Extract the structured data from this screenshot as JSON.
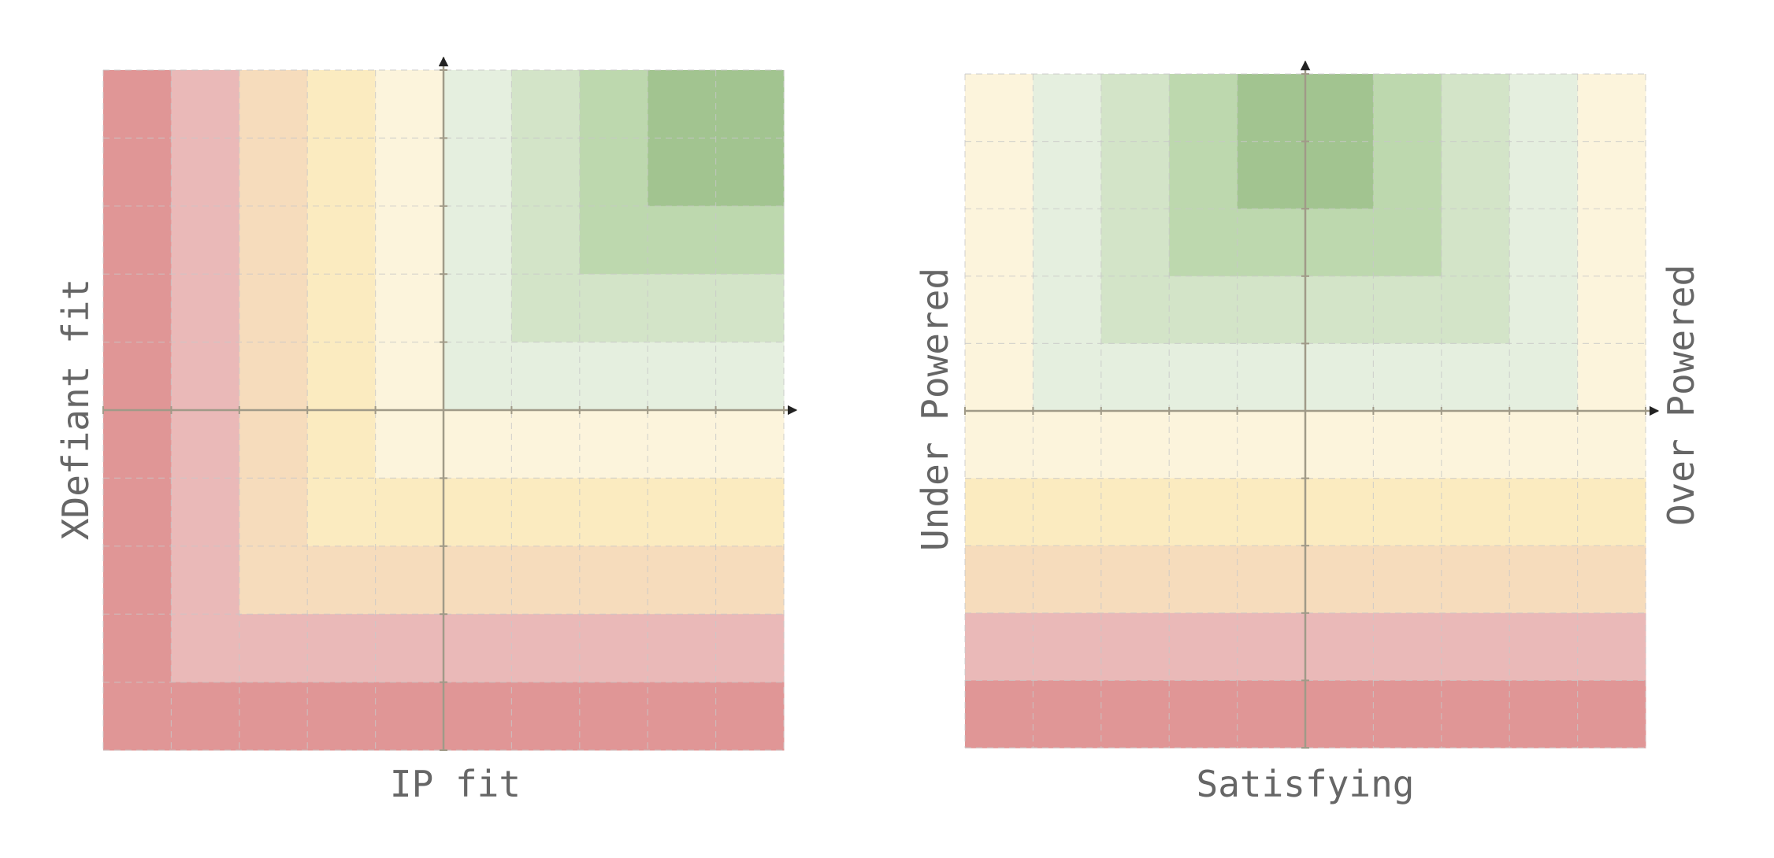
{
  "colors": {
    "level_5": "#a2c490",
    "level_4": "#bdd8ae",
    "level_3": "#d3e4c8",
    "level_2": "#e5efdf",
    "level_1": "#fcf4dc",
    "level_m1": "#fbebc0",
    "level_m2": "#f6dcbc",
    "level_m3": "#eab9b8",
    "level_m4": "#e09696",
    "axis": "#a09a88",
    "axis_dark": "#5a3a3a",
    "grid": "#c8c8c8",
    "label": "#666666"
  },
  "left_chart": {
    "xlabel": "IP fit",
    "ylabel": "XDefiant fit",
    "cells": [
      [
        -4,
        -3,
        -2,
        -1,
        1,
        2,
        3,
        4,
        5,
        5
      ],
      [
        -4,
        -3,
        -2,
        -1,
        1,
        2,
        3,
        4,
        5,
        5
      ],
      [
        -4,
        -3,
        -2,
        -1,
        1,
        2,
        3,
        4,
        4,
        4
      ],
      [
        -4,
        -3,
        -2,
        -1,
        1,
        2,
        3,
        3,
        3,
        3
      ],
      [
        -4,
        -3,
        -2,
        -1,
        1,
        2,
        2,
        2,
        2,
        2
      ],
      [
        -4,
        -3,
        -2,
        -1,
        1,
        1,
        1,
        1,
        1,
        1
      ],
      [
        -4,
        -3,
        -2,
        -1,
        -1,
        -1,
        -1,
        -1,
        -1,
        -1
      ],
      [
        -4,
        -3,
        -2,
        -2,
        -2,
        -2,
        -2,
        -2,
        -2,
        -2
      ],
      [
        -4,
        -3,
        -3,
        -3,
        -3,
        -3,
        -3,
        -3,
        -3,
        -3
      ],
      [
        -4,
        -4,
        -4,
        -4,
        -4,
        -4,
        -4,
        -4,
        -4,
        -4
      ]
    ]
  },
  "right_chart": {
    "xlabel": "Satisfying",
    "ylabel_left": "Under Powered",
    "ylabel_right": "Over Powered",
    "cells": [
      [
        1,
        2,
        3,
        4,
        5,
        5,
        4,
        3,
        2,
        1
      ],
      [
        1,
        2,
        3,
        4,
        5,
        5,
        4,
        3,
        2,
        1
      ],
      [
        1,
        2,
        3,
        4,
        4,
        4,
        4,
        3,
        2,
        1
      ],
      [
        1,
        2,
        3,
        3,
        3,
        3,
        3,
        3,
        2,
        1
      ],
      [
        1,
        2,
        2,
        2,
        2,
        2,
        2,
        2,
        2,
        1
      ],
      [
        1,
        1,
        1,
        1,
        1,
        1,
        1,
        1,
        1,
        1
      ],
      [
        -1,
        -1,
        -1,
        -1,
        -1,
        -1,
        -1,
        -1,
        -1,
        -1
      ],
      [
        -2,
        -2,
        -2,
        -2,
        -2,
        -2,
        -2,
        -2,
        -2,
        -2
      ],
      [
        -3,
        -3,
        -3,
        -3,
        -3,
        -3,
        -3,
        -3,
        -3,
        -3
      ],
      [
        -4,
        -4,
        -4,
        -4,
        -4,
        -4,
        -4,
        -4,
        -4,
        -4
      ]
    ]
  }
}
